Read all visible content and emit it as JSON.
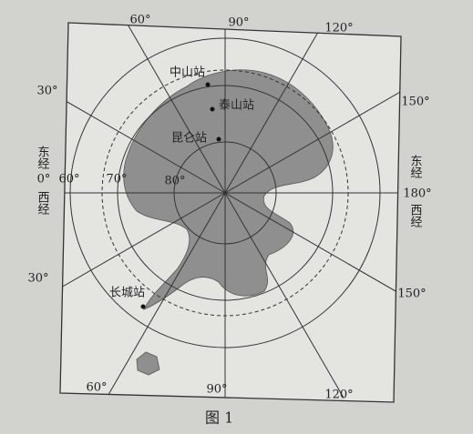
{
  "longitude_labels": {
    "top": [
      "60°",
      "90°",
      "120°"
    ],
    "left": "30°",
    "right": "150°",
    "lower_left": "30°",
    "lower_right": "150°",
    "bottom": [
      "60°",
      "90°",
      "120°"
    ]
  },
  "latitude_labels": [
    "60°",
    "70°",
    "80°"
  ],
  "meridian_labels": {
    "left": [
      "东经",
      "0°",
      "西经"
    ],
    "right": [
      "东经",
      "180°",
      "西经"
    ]
  },
  "stations": [
    "中山站",
    "泰山站",
    "昆仑站",
    "长城站"
  ],
  "caption": "图 1"
}
